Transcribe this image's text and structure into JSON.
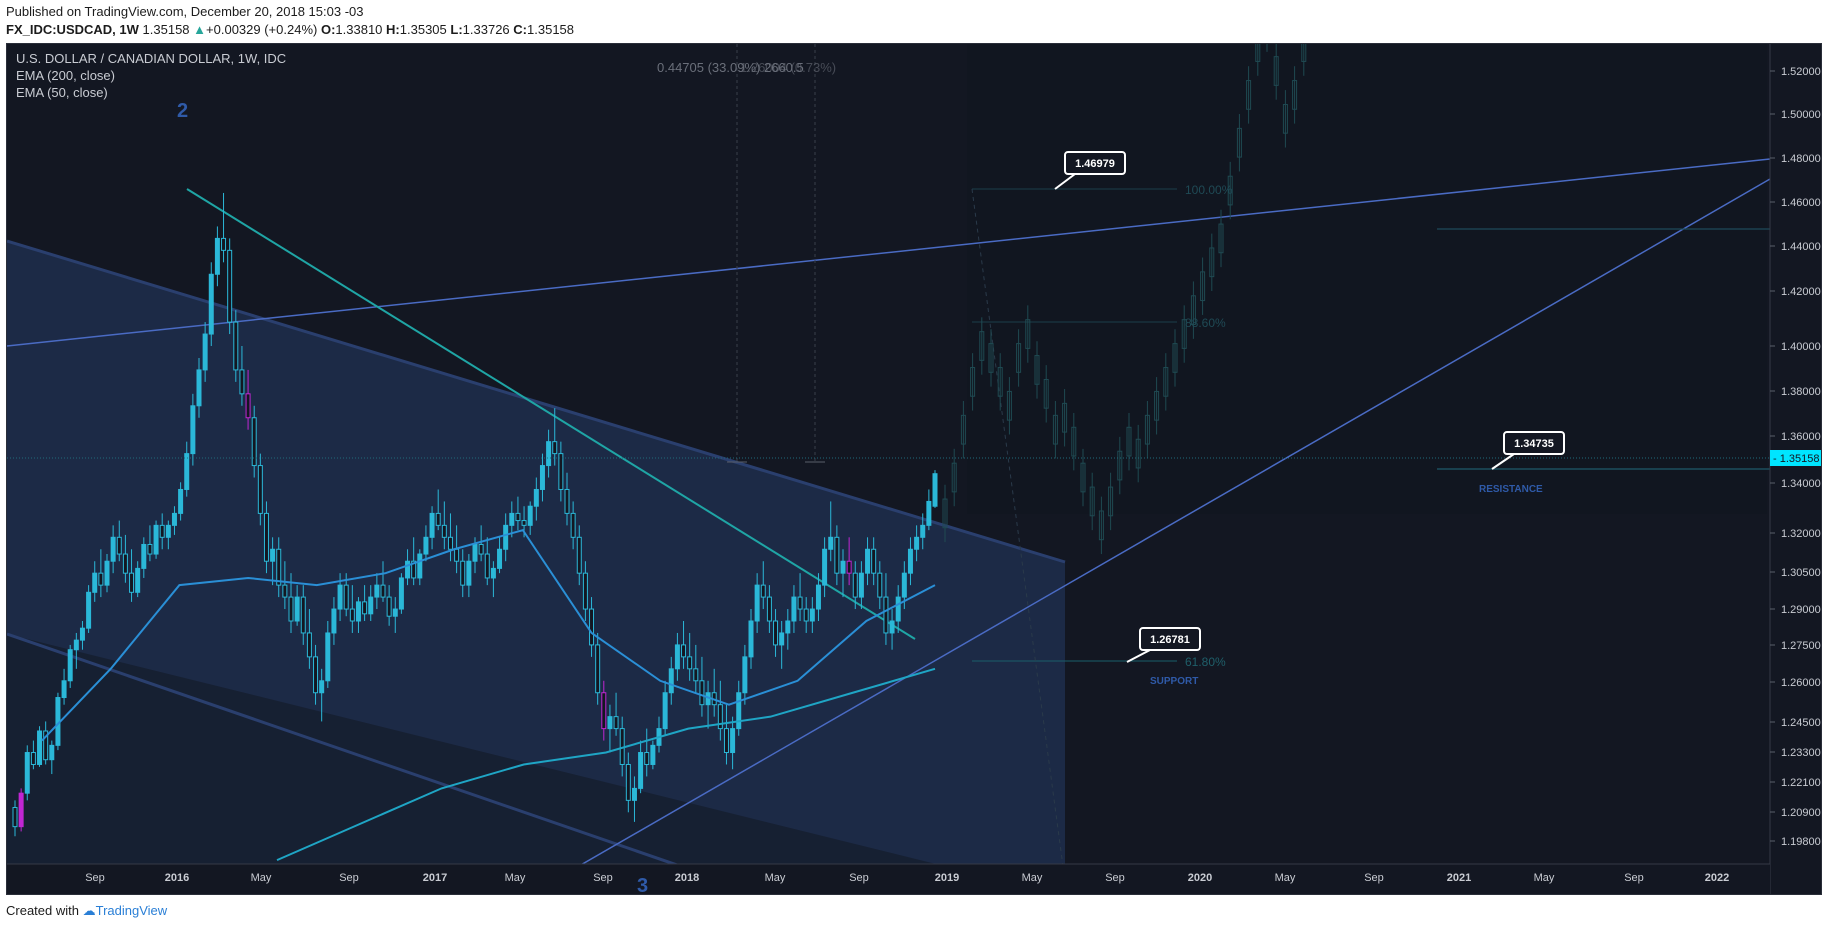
{
  "header": {
    "line1": "Published on TradingView.com, December 20, 2018 15:03 -03",
    "symbol": "FX_IDC:USDCAD, 1W",
    "last": "1.35158",
    "change_icon": "triangle-up-icon",
    "change": "+0.00329 (+0.24%)",
    "ohlc": [
      {
        "label": "O:",
        "value": "1.33810"
      },
      {
        "label": "H:",
        "value": "1.35305"
      },
      {
        "label": "L:",
        "value": "1.33726"
      },
      {
        "label": "C:",
        "value": "1.35158"
      }
    ]
  },
  "legend": {
    "title": "U.S. DOLLAR / CANADIAN DOLLAR, 1W, IDC",
    "ema200": "EMA (200, close)",
    "ema50": "EMA (50, close)"
  },
  "footer": {
    "created_with": "Created with",
    "brand": "TradingView",
    "logo_icon": "tradingview-cloud-icon"
  },
  "colors": {
    "background": "#131722",
    "up": "#26a69a",
    "down": "#26a69a",
    "candle": "#2bb8d8",
    "highlight_candle": "#c026d3",
    "channel": "#2a4a8a",
    "trendline": "#4a6bc4",
    "cyan_line": "#1fa5a5",
    "ema": "#2a8fd6",
    "price_tag": "#00e5ff"
  },
  "chart_data": {
    "type": "candlestick",
    "title": "U.S. DOLLAR / CANADIAN DOLLAR, 1W, IDC",
    "last_price": "1.35158",
    "x_ticks": [
      "Sep",
      "2016",
      "May",
      "Sep",
      "2017",
      "May",
      "Sep",
      "2018",
      "May",
      "Sep",
      "2019",
      "May",
      "Sep",
      "2020",
      "May",
      "Sep",
      "2021",
      "May",
      "Sep",
      "2022"
    ],
    "y_ticks": [
      "1.52000",
      "1.50000",
      "1.48000",
      "1.46000",
      "1.44000",
      "1.42000",
      "1.40000",
      "1.38000",
      "1.36000",
      "1.34000",
      "1.32000",
      "1.30500",
      "1.29000",
      "1.27500",
      "1.26000",
      "1.24500",
      "1.23300",
      "1.22100",
      "1.20900",
      "1.19800"
    ],
    "y_range": [
      1.1925,
      1.5285
    ],
    "annotations": {
      "callouts": [
        "1.46979",
        "1.34735",
        "1.26781"
      ],
      "labels": [
        "RESISTANCE",
        "SUPPORT"
      ],
      "fib_levels": [
        "100.00%",
        "88.60%",
        "61.80%"
      ],
      "wave_labels": [
        "2",
        "3"
      ],
      "projection_text": "0.44705 (33.09%) 2660.5",
      "overlap_text": "1.26004 (0.73%)"
    },
    "candles": [
      [
        1.212,
        1.215,
        1.2,
        1.204
      ],
      [
        1.204,
        1.22,
        1.202,
        1.218
      ],
      [
        1.218,
        1.238,
        1.215,
        1.235
      ],
      [
        1.235,
        1.24,
        1.228,
        1.23
      ],
      [
        1.23,
        1.246,
        1.229,
        1.244
      ],
      [
        1.244,
        1.248,
        1.23,
        1.232
      ],
      [
        1.232,
        1.24,
        1.226,
        1.238
      ],
      [
        1.238,
        1.26,
        1.236,
        1.258
      ],
      [
        1.258,
        1.27,
        1.255,
        1.265
      ],
      [
        1.265,
        1.28,
        1.262,
        1.278
      ],
      [
        1.278,
        1.285,
        1.27,
        1.282
      ],
      [
        1.282,
        1.29,
        1.278,
        1.287
      ],
      [
        1.287,
        1.305,
        1.285,
        1.302
      ],
      [
        1.302,
        1.315,
        1.298,
        1.31
      ],
      [
        1.31,
        1.32,
        1.3,
        1.305
      ],
      [
        1.305,
        1.318,
        1.302,
        1.315
      ],
      [
        1.315,
        1.33,
        1.31,
        1.325
      ],
      [
        1.325,
        1.332,
        1.315,
        1.318
      ],
      [
        1.318,
        1.326,
        1.306,
        1.31
      ],
      [
        1.31,
        1.32,
        1.298,
        1.302
      ],
      [
        1.302,
        1.315,
        1.3,
        1.312
      ],
      [
        1.312,
        1.325,
        1.308,
        1.322
      ],
      [
        1.322,
        1.33,
        1.315,
        1.318
      ],
      [
        1.318,
        1.332,
        1.316,
        1.33
      ],
      [
        1.33,
        1.335,
        1.32,
        1.325
      ],
      [
        1.325,
        1.332,
        1.32,
        1.33
      ],
      [
        1.33,
        1.338,
        1.326,
        1.335
      ],
      [
        1.335,
        1.348,
        1.332,
        1.345
      ],
      [
        1.345,
        1.365,
        1.342,
        1.36
      ],
      [
        1.36,
        1.385,
        1.355,
        1.38
      ],
      [
        1.38,
        1.4,
        1.375,
        1.395
      ],
      [
        1.395,
        1.415,
        1.39,
        1.41
      ],
      [
        1.41,
        1.44,
        1.405,
        1.435
      ],
      [
        1.435,
        1.455,
        1.43,
        1.45
      ],
      [
        1.45,
        1.469,
        1.44,
        1.445
      ],
      [
        1.445,
        1.45,
        1.41,
        1.415
      ],
      [
        1.415,
        1.42,
        1.39,
        1.395
      ],
      [
        1.395,
        1.405,
        1.38,
        1.385
      ],
      [
        1.385,
        1.395,
        1.37,
        1.375
      ],
      [
        1.375,
        1.38,
        1.35,
        1.355
      ],
      [
        1.355,
        1.36,
        1.33,
        1.335
      ],
      [
        1.335,
        1.34,
        1.31,
        1.315
      ],
      [
        1.315,
        1.325,
        1.305,
        1.32
      ],
      [
        1.32,
        1.325,
        1.3,
        1.305
      ],
      [
        1.305,
        1.315,
        1.295,
        1.3
      ],
      [
        1.3,
        1.31,
        1.285,
        1.29
      ],
      [
        1.29,
        1.305,
        1.288,
        1.3
      ],
      [
        1.3,
        1.305,
        1.28,
        1.285
      ],
      [
        1.285,
        1.295,
        1.27,
        1.275
      ],
      [
        1.275,
        1.28,
        1.255,
        1.26
      ],
      [
        1.26,
        1.27,
        1.248,
        1.265
      ],
      [
        1.265,
        1.29,
        1.262,
        1.285
      ],
      [
        1.285,
        1.3,
        1.28,
        1.295
      ],
      [
        1.295,
        1.31,
        1.29,
        1.305
      ],
      [
        1.305,
        1.31,
        1.292,
        1.295
      ],
      [
        1.295,
        1.305,
        1.285,
        1.29
      ],
      [
        1.29,
        1.3,
        1.285,
        1.298
      ],
      [
        1.298,
        1.305,
        1.29,
        1.293
      ],
      [
        1.293,
        1.305,
        1.29,
        1.3
      ],
      [
        1.3,
        1.31,
        1.295,
        1.305
      ],
      [
        1.305,
        1.315,
        1.298,
        1.3
      ],
      [
        1.3,
        1.305,
        1.288,
        1.292
      ],
      [
        1.292,
        1.3,
        1.285,
        1.295
      ],
      [
        1.295,
        1.31,
        1.293,
        1.308
      ],
      [
        1.308,
        1.32,
        1.305,
        1.315
      ],
      [
        1.315,
        1.325,
        1.305,
        1.308
      ],
      [
        1.308,
        1.32,
        1.305,
        1.318
      ],
      [
        1.318,
        1.33,
        1.315,
        1.325
      ],
      [
        1.325,
        1.338,
        1.32,
        1.335
      ],
      [
        1.335,
        1.345,
        1.328,
        1.33
      ],
      [
        1.33,
        1.34,
        1.32,
        1.325
      ],
      [
        1.325,
        1.335,
        1.315,
        1.32
      ],
      [
        1.32,
        1.33,
        1.31,
        1.315
      ],
      [
        1.315,
        1.32,
        1.3,
        1.305
      ],
      [
        1.305,
        1.318,
        1.3,
        1.315
      ],
      [
        1.315,
        1.325,
        1.31,
        1.322
      ],
      [
        1.322,
        1.33,
        1.315,
        1.318
      ],
      [
        1.318,
        1.325,
        1.305,
        1.308
      ],
      [
        1.308,
        1.315,
        1.3,
        1.312
      ],
      [
        1.312,
        1.325,
        1.31,
        1.32
      ],
      [
        1.32,
        1.335,
        1.315,
        1.33
      ],
      [
        1.33,
        1.34,
        1.325,
        1.335
      ],
      [
        1.335,
        1.342,
        1.328,
        1.332
      ],
      [
        1.332,
        1.338,
        1.325,
        1.33
      ],
      [
        1.33,
        1.34,
        1.326,
        1.338
      ],
      [
        1.338,
        1.35,
        1.332,
        1.345
      ],
      [
        1.345,
        1.36,
        1.34,
        1.355
      ],
      [
        1.355,
        1.37,
        1.35,
        1.365
      ],
      [
        1.365,
        1.379,
        1.355,
        1.36
      ],
      [
        1.36,
        1.365,
        1.34,
        1.345
      ],
      [
        1.345,
        1.352,
        1.33,
        1.335
      ],
      [
        1.335,
        1.34,
        1.32,
        1.325
      ],
      [
        1.325,
        1.33,
        1.305,
        1.31
      ],
      [
        1.31,
        1.315,
        1.29,
        1.295
      ],
      [
        1.295,
        1.3,
        1.275,
        1.28
      ],
      [
        1.28,
        1.285,
        1.255,
        1.26
      ],
      [
        1.26,
        1.265,
        1.24,
        1.245
      ],
      [
        1.245,
        1.255,
        1.235,
        1.25
      ],
      [
        1.25,
        1.26,
        1.242,
        1.245
      ],
      [
        1.245,
        1.25,
        1.225,
        1.23
      ],
      [
        1.23,
        1.235,
        1.21,
        1.215
      ],
      [
        1.215,
        1.225,
        1.206,
        1.22
      ],
      [
        1.22,
        1.24,
        1.218,
        1.235
      ],
      [
        1.235,
        1.245,
        1.225,
        1.23
      ],
      [
        1.23,
        1.24,
        1.228,
        1.238
      ],
      [
        1.238,
        1.25,
        1.235,
        1.245
      ],
      [
        1.245,
        1.265,
        1.242,
        1.26
      ],
      [
        1.26,
        1.275,
        1.255,
        1.27
      ],
      [
        1.27,
        1.285,
        1.265,
        1.28
      ],
      [
        1.28,
        1.29,
        1.27,
        1.275
      ],
      [
        1.275,
        1.285,
        1.265,
        1.27
      ],
      [
        1.27,
        1.28,
        1.26,
        1.265
      ],
      [
        1.265,
        1.275,
        1.25,
        1.255
      ],
      [
        1.255,
        1.265,
        1.245,
        1.26
      ],
      [
        1.26,
        1.27,
        1.25,
        1.255
      ],
      [
        1.255,
        1.265,
        1.24,
        1.245
      ],
      [
        1.245,
        1.255,
        1.23,
        1.235
      ],
      [
        1.235,
        1.25,
        1.228,
        1.245
      ],
      [
        1.245,
        1.265,
        1.242,
        1.26
      ],
      [
        1.26,
        1.28,
        1.255,
        1.275
      ],
      [
        1.275,
        1.295,
        1.27,
        1.29
      ],
      [
        1.29,
        1.31,
        1.285,
        1.305
      ],
      [
        1.305,
        1.315,
        1.295,
        1.3
      ],
      [
        1.3,
        1.305,
        1.285,
        1.29
      ],
      [
        1.29,
        1.295,
        1.275,
        1.28
      ],
      [
        1.28,
        1.29,
        1.27,
        1.285
      ],
      [
        1.285,
        1.295,
        1.278,
        1.29
      ],
      [
        1.29,
        1.305,
        1.285,
        1.3
      ],
      [
        1.3,
        1.31,
        1.29,
        1.295
      ],
      [
        1.295,
        1.3,
        1.285,
        1.29
      ],
      [
        1.29,
        1.3,
        1.285,
        1.295
      ],
      [
        1.295,
        1.31,
        1.29,
        1.305
      ],
      [
        1.305,
        1.325,
        1.3,
        1.32
      ],
      [
        1.32,
        1.34,
        1.315,
        1.325
      ],
      [
        1.325,
        1.33,
        1.305,
        1.31
      ],
      [
        1.31,
        1.32,
        1.3,
        1.315
      ],
      [
        1.315,
        1.325,
        1.305,
        1.31
      ],
      [
        1.31,
        1.315,
        1.295,
        1.3
      ],
      [
        1.3,
        1.315,
        1.295,
        1.31
      ],
      [
        1.31,
        1.325,
        1.305,
        1.32
      ],
      [
        1.32,
        1.325,
        1.305,
        1.31
      ],
      [
        1.31,
        1.315,
        1.295,
        1.3
      ],
      [
        1.3,
        1.31,
        1.28,
        1.285
      ],
      [
        1.285,
        1.295,
        1.278,
        1.29
      ],
      [
        1.29,
        1.305,
        1.285,
        1.3
      ],
      [
        1.3,
        1.315,
        1.295,
        1.31
      ],
      [
        1.31,
        1.325,
        1.305,
        1.32
      ],
      [
        1.32,
        1.33,
        1.315,
        1.325
      ],
      [
        1.325,
        1.335,
        1.32,
        1.33
      ],
      [
        1.33,
        1.345,
        1.328,
        1.34
      ],
      [
        1.338,
        1.3531,
        1.3373,
        1.3516
      ]
    ],
    "highlight_candles": [
      1,
      38,
      96,
      136
    ],
    "ema50": [
      1.24,
      1.27,
      1.305,
      1.308,
      1.305,
      1.31,
      1.32,
      1.328,
      1.285,
      1.265,
      1.255,
      1.265,
      1.29,
      1.305
    ],
    "ema200": [
      1.19,
      1.205,
      1.22,
      1.23,
      1.235,
      1.245,
      1.25,
      1.26,
      1.27
    ],
    "projection_candles": "ghost"
  }
}
